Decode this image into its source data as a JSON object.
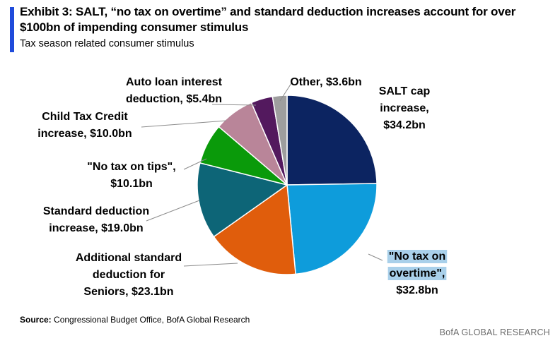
{
  "header": {
    "title": "Exhibit 3: SALT, “no tax on overtime” and standard deduction increases account for over $100bn of impending consumer stimulus",
    "subtitle": "Tax season related consumer stimulus",
    "accent_color": "#1f4bdb"
  },
  "chart_data": {
    "type": "pie",
    "title": "Tax season related consumer stimulus",
    "units": "$bn",
    "start_angle_deg": 0,
    "direction": "clockwise",
    "slices": [
      {
        "name": "SALT cap increase",
        "value": 34.2,
        "color": "#0c2461",
        "label_lines": [
          "SALT cap",
          "increase,",
          "$34.2bn"
        ]
      },
      {
        "name": "\"No tax on overtime\"",
        "value": 32.8,
        "color": "#0e9cdb",
        "label_lines": [
          "\"No tax on",
          "overtime\",",
          "$32.8bn"
        ]
      },
      {
        "name": "Additional standard deduction for Seniors",
        "value": 23.1,
        "color": "#e05d0c",
        "label_lines": [
          "Additional standard",
          "deduction for",
          "Seniors, $23.1bn"
        ]
      },
      {
        "name": "Standard deduction increase",
        "value": 19.0,
        "color": "#0d6577",
        "label_lines": [
          "Standard deduction",
          "increase, $19.0bn"
        ]
      },
      {
        "name": "\"No tax on tips\"",
        "value": 10.1,
        "color": "#0a9a0a",
        "label_lines": [
          "\"No tax on tips\",",
          "$10.1bn"
        ]
      },
      {
        "name": "Child Tax Credit increase",
        "value": 10.0,
        "color": "#b98599",
        "label_lines": [
          "Child Tax Credit",
          "increase, $10.0bn"
        ]
      },
      {
        "name": "Auto loan interest deduction",
        "value": 5.4,
        "color": "#53195e",
        "label_lines": [
          "Auto loan interest",
          "deduction, $5.4bn"
        ]
      },
      {
        "name": "Other",
        "value": 3.6,
        "color": "#9e9e9e",
        "label_lines": [
          "Other, $3.6bn"
        ]
      }
    ]
  },
  "footer": {
    "source_label": "Source:",
    "source_text": "Congressional Budget Office, BofA Global Research",
    "brand": "BofA GLOBAL RESEARCH"
  }
}
